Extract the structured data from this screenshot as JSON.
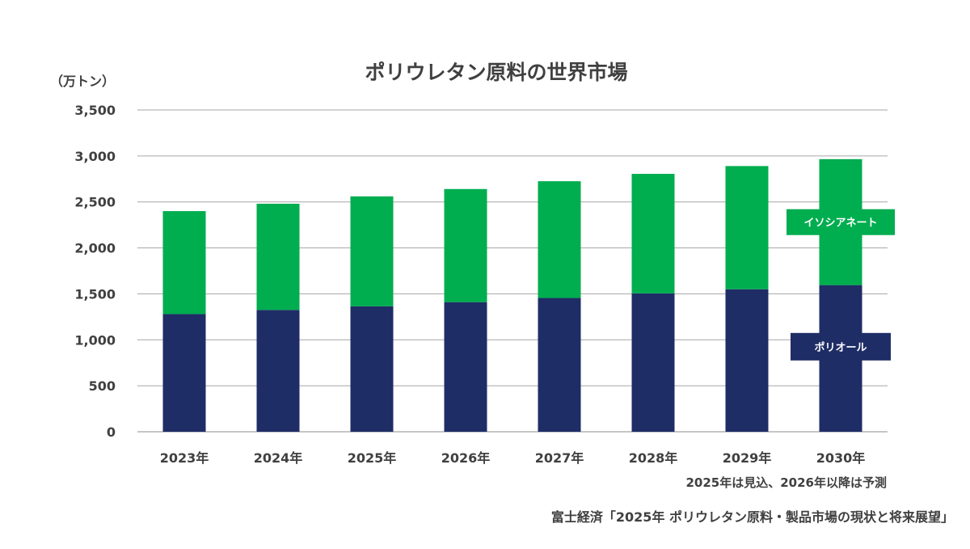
{
  "chart_data": {
    "type": "bar",
    "stacked": true,
    "title": "ポリウレタン原料の世界市場",
    "ylabel": "（万トン）",
    "categories": [
      "2023年",
      "2024年",
      "2025年",
      "2026年",
      "2027年",
      "2028年",
      "2029年",
      "2030年"
    ],
    "series": [
      {
        "name": "ポリオール",
        "color": "#1f2d66",
        "values": [
          1280,
          1325,
          1365,
          1410,
          1455,
          1505,
          1550,
          1595
        ]
      },
      {
        "name": "イソシアネート",
        "color": "#00ad4f",
        "values": [
          1120,
          1155,
          1195,
          1230,
          1270,
          1300,
          1340,
          1370
        ]
      }
    ],
    "ylim": [
      0,
      3500
    ],
    "yticks": [
      0,
      500,
      1000,
      1500,
      2000,
      2500,
      3000,
      3500
    ],
    "ytick_labels": [
      "0",
      "500",
      "1,000",
      "1,500",
      "2,000",
      "2,500",
      "3,000",
      "3,500"
    ],
    "grid": true,
    "legend": "inline labels on last bar",
    "note": "2025年は見込、2026年以降は予測",
    "source": "富士経済「2025年 ポリウレタン原料・製品市場の現状と将来展望」"
  }
}
